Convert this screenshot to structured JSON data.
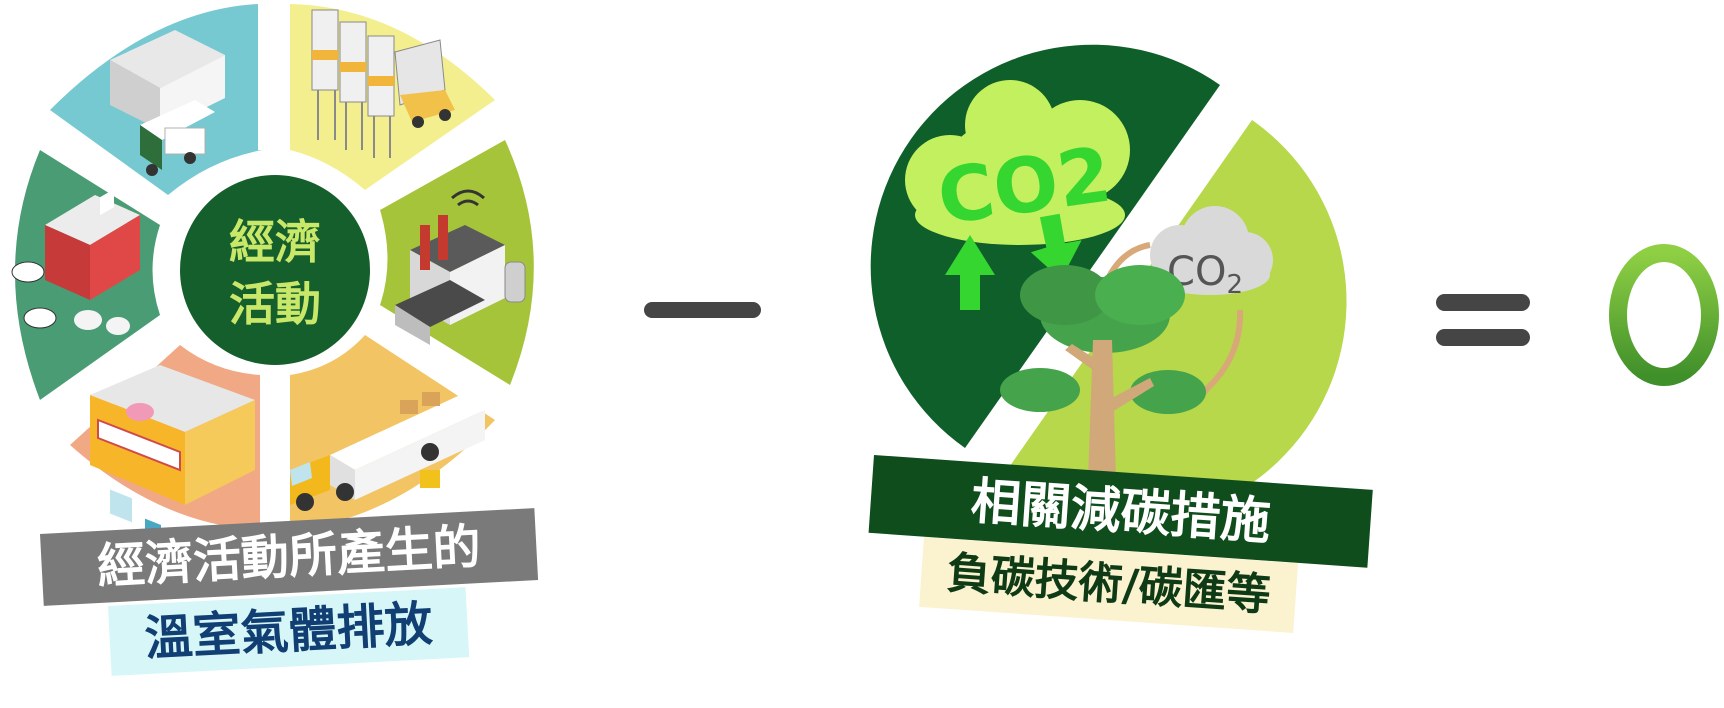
{
  "hub": {
    "line1": "經濟",
    "line2": "活動"
  },
  "co2_cloud": {
    "label": "CO2"
  },
  "co2_small": {
    "label": "CO",
    "subscript": "2"
  },
  "left_caption": {
    "line1": "經濟活動所產生的",
    "line2": "溫室氣體排放"
  },
  "right_caption": {
    "line1": "相關減碳措施",
    "line2": "負碳技術/碳匯等"
  },
  "operators": {
    "minus": "−",
    "equals": "="
  },
  "result": {
    "value": "0"
  },
  "colors": {
    "dark_green": "#0f5f2a",
    "lime": "#b6d84a",
    "cloud_green": "#c3f05f",
    "arrow_green": "#36d631",
    "zero_green": "#5aa832",
    "operator_gray": "#454545"
  }
}
